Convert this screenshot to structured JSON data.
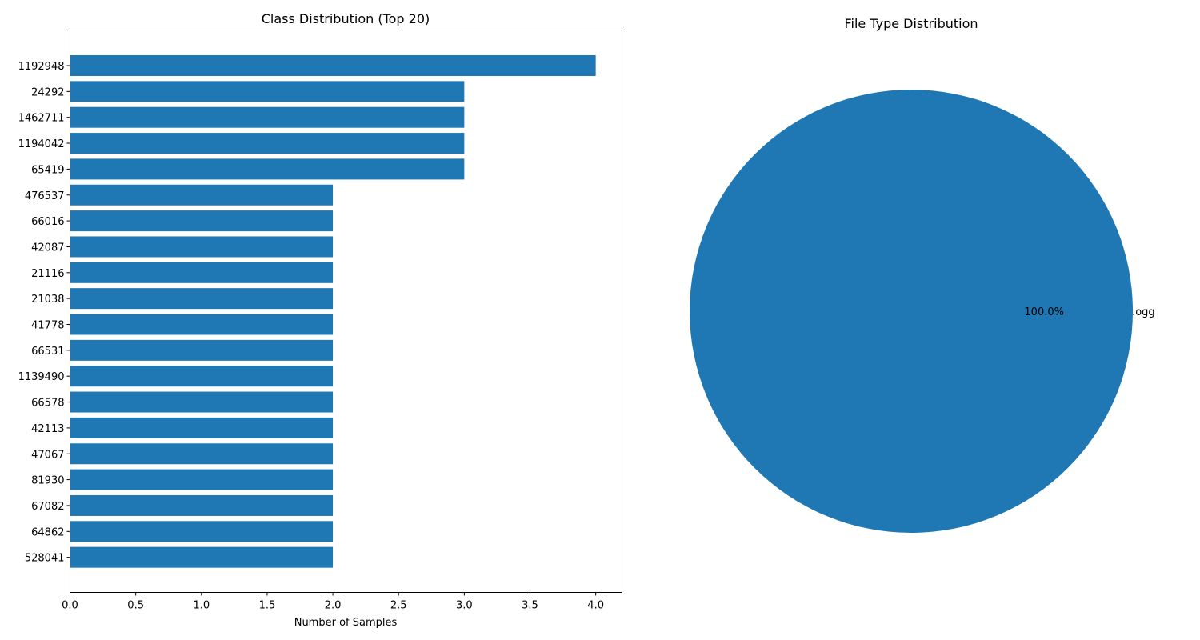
{
  "chart_data": [
    {
      "type": "bar",
      "orientation": "horizontal",
      "title": "Class Distribution (Top 20)",
      "xlabel": "Number of Samples",
      "ylabel": "",
      "categories": [
        "1192948",
        "24292",
        "1462711",
        "1194042",
        "65419",
        "476537",
        "66016",
        "42087",
        "21116",
        "21038",
        "41778",
        "66531",
        "1139490",
        "66578",
        "42113",
        "47067",
        "81930",
        "67082",
        "64862",
        "528041"
      ],
      "values": [
        4,
        3,
        3,
        3,
        3,
        2,
        2,
        2,
        2,
        2,
        2,
        2,
        2,
        2,
        2,
        2,
        2,
        2,
        2,
        2
      ],
      "xlim": [
        0,
        4.2
      ],
      "xticks": [
        "0.0",
        "0.5",
        "1.0",
        "1.5",
        "2.0",
        "2.5",
        "3.0",
        "3.5",
        "4.0"
      ],
      "bar_color": "#1f77b4",
      "grid": false
    },
    {
      "type": "pie",
      "title": "File Type Distribution",
      "labels": [
        ".ogg"
      ],
      "values": [
        100.0
      ],
      "autopct": [
        "100.0%"
      ],
      "colors": [
        "#1f77b4"
      ]
    }
  ]
}
